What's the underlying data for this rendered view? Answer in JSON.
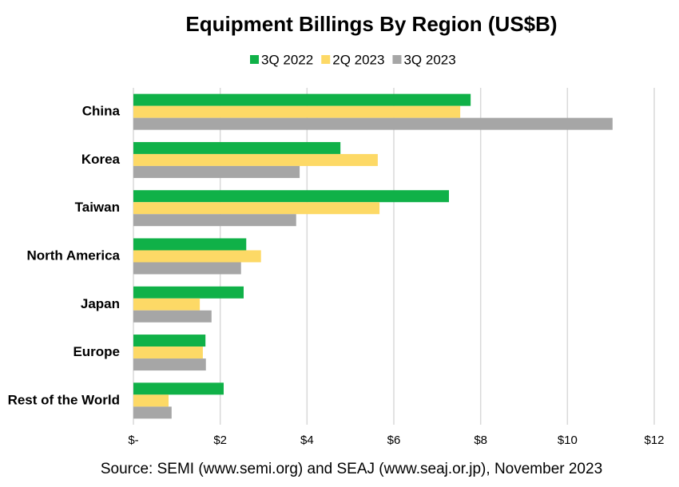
{
  "chart_data": {
    "type": "bar",
    "orientation": "horizontal",
    "title": "Equipment Billings By Region (US$B)",
    "source": "Source: SEMI (www.semi.org) and SEAJ (www.seaj.or.jp), November 2023",
    "categories": [
      "China",
      "Korea",
      "Taiwan",
      "North America",
      "Japan",
      "Europe",
      "Rest of the World"
    ],
    "series": [
      {
        "name": "3Q 2022",
        "color": "#10b148",
        "values": [
          7.77,
          4.77,
          7.27,
          2.6,
          2.54,
          1.66,
          2.08
        ]
      },
      {
        "name": "2Q 2023",
        "color": "#fdd966",
        "values": [
          7.53,
          5.63,
          5.67,
          2.94,
          1.53,
          1.6,
          0.81
        ]
      },
      {
        "name": "3Q 2023",
        "color": "#a6a6a6",
        "values": [
          11.04,
          3.83,
          3.75,
          2.48,
          1.8,
          1.67,
          0.88
        ]
      }
    ],
    "xlim": [
      0,
      12
    ],
    "xticks": [
      {
        "value": 0,
        "label": "$-"
      },
      {
        "value": 2,
        "label": "$2"
      },
      {
        "value": 4,
        "label": "$4"
      },
      {
        "value": 6,
        "label": "$6"
      },
      {
        "value": 8,
        "label": "$8"
      },
      {
        "value": 10,
        "label": "$10"
      },
      {
        "value": 12,
        "label": "$12"
      }
    ],
    "grid": true,
    "legend": "top"
  }
}
